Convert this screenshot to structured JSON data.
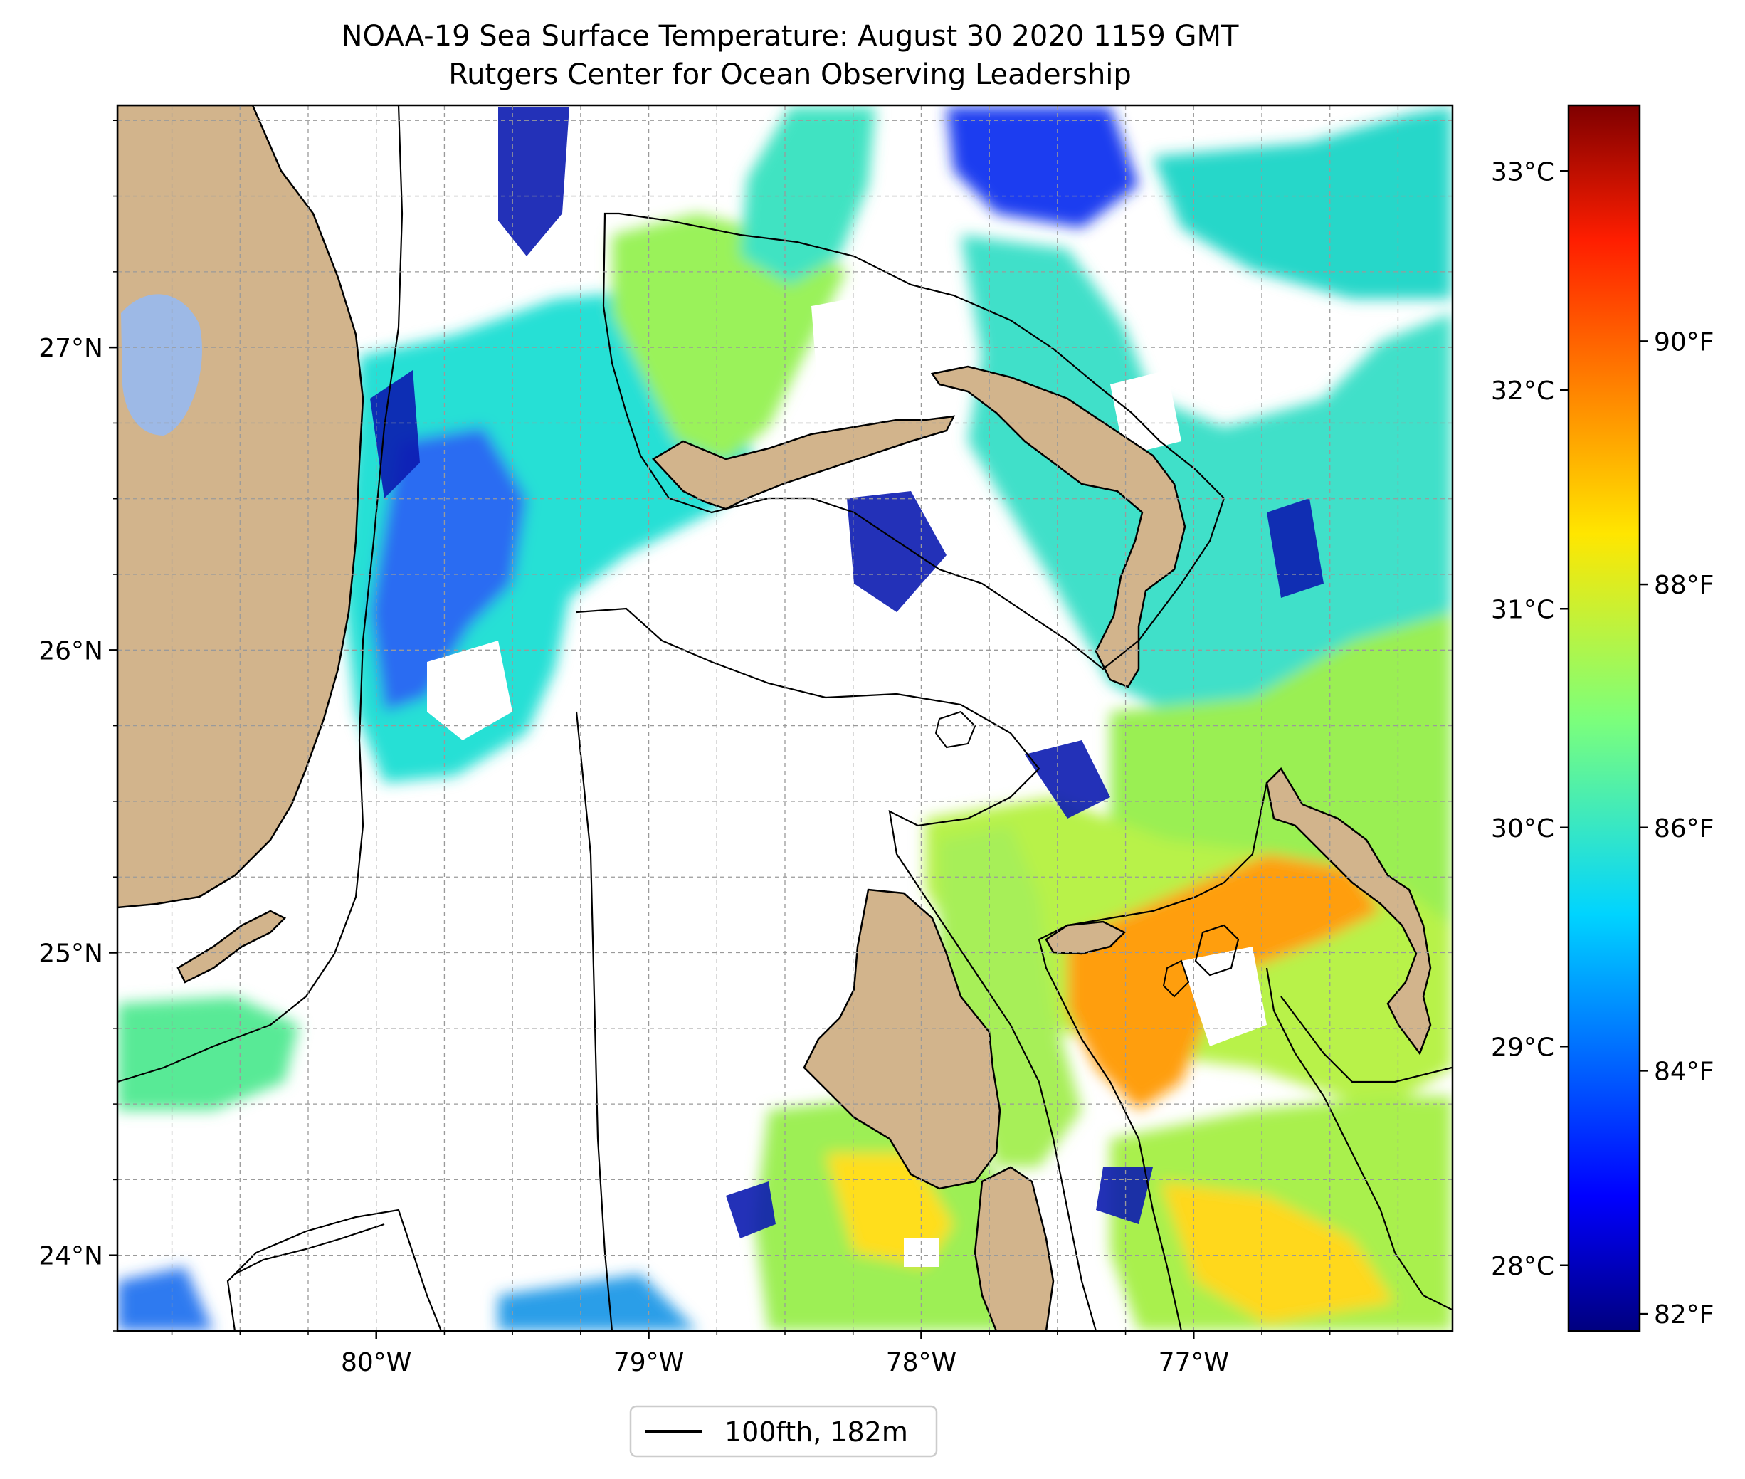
{
  "title": {
    "line1": "NOAA-19 Sea Surface Temperature: August 30 2020 1159 GMT",
    "line2": "Rutgers Center for Ocean Observing Leadership"
  },
  "map": {
    "lat_range": [
      23.75,
      27.8
    ],
    "lon_range": [
      -80.95,
      -76.05
    ],
    "lat_ticks": [
      {
        "value": 24,
        "label": "24°N"
      },
      {
        "value": 25,
        "label": "25°N"
      },
      {
        "value": 26,
        "label": "26°N"
      },
      {
        "value": 27,
        "label": "27°N"
      }
    ],
    "lon_ticks": [
      {
        "value": -80,
        "label": "80°W"
      },
      {
        "value": -79,
        "label": "79°W"
      },
      {
        "value": -78,
        "label": "78°W"
      },
      {
        "value": -77,
        "label": "77°W"
      }
    ],
    "gridlines": "dashed, on",
    "land_color": "#d2b48c",
    "lake_color": "#9db9e6",
    "missing_data_color": "#ffffff",
    "contour": "100 fathom (182 m) isobath",
    "regions": [
      "Florida",
      "Lake Okeechobee",
      "Grand Bahama",
      "Abaco",
      "Andros Island",
      "Eleuthera",
      "New Providence"
    ]
  },
  "colorbar": {
    "colormap": "jet",
    "range_c": [
      27.7,
      33.3
    ],
    "celsius_ticks": [
      {
        "value": 28,
        "label": "28°C"
      },
      {
        "value": 29,
        "label": "29°C"
      },
      {
        "value": 30,
        "label": "30°C"
      },
      {
        "value": 31,
        "label": "31°C"
      },
      {
        "value": 32,
        "label": "32°C"
      },
      {
        "value": 33,
        "label": "33°C"
      }
    ],
    "fahrenheit_ticks": [
      {
        "value": 82,
        "label": "82°F"
      },
      {
        "value": 84,
        "label": "84°F"
      },
      {
        "value": 86,
        "label": "86°F"
      },
      {
        "value": 88,
        "label": "88°F"
      },
      {
        "value": 90,
        "label": "90°F"
      }
    ]
  },
  "legend": {
    "label": "100fth, 182m",
    "placement": "bottom-center",
    "line_color": "#000000"
  }
}
